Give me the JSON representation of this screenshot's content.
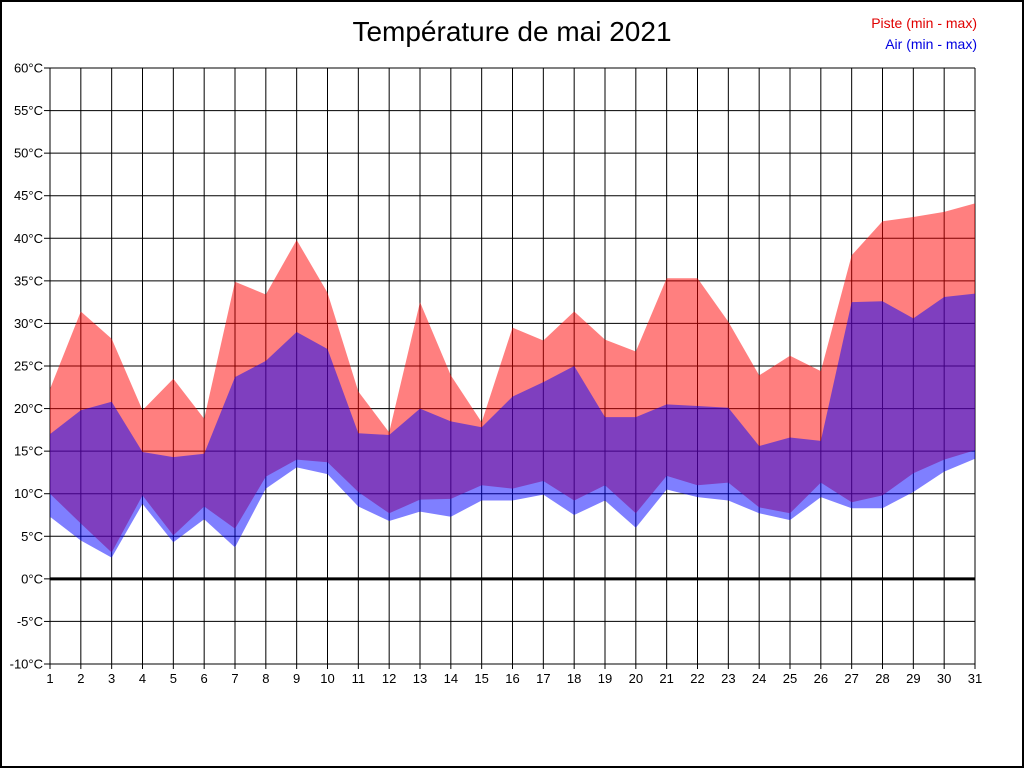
{
  "page": {
    "background_color": "#ffffff",
    "border_color": "#000000"
  },
  "chart_data": {
    "type": "area",
    "title": "Température de mai 2021",
    "x": [
      1,
      2,
      3,
      4,
      5,
      6,
      7,
      8,
      9,
      10,
      11,
      12,
      13,
      14,
      15,
      16,
      17,
      18,
      19,
      20,
      21,
      22,
      23,
      24,
      25,
      26,
      27,
      28,
      29,
      30,
      31
    ],
    "xlabel": "",
    "ylabel": "",
    "ylim": [
      -10,
      60
    ],
    "ytick_step": 5,
    "y_unit": "°C",
    "y_tick_labels": [
      "-10°C",
      "-5°C",
      "0°C",
      "5°C",
      "10°C",
      "15°C",
      "20°C",
      "25°C",
      "30°C",
      "35°C",
      "40°C",
      "45°C",
      "50°C",
      "55°C",
      "60°C"
    ],
    "grid": true,
    "zero_line_emphasized": true,
    "legend_position": "top-right",
    "overlap_appearance": "#8040bf",
    "series": [
      {
        "name": "Piste (min - max)",
        "kind": "min-max-band",
        "fill": "rgba(255,0,0,0.5)",
        "label_color": "#e00000",
        "max": [
          22.3,
          31.4,
          28.2,
          19.8,
          23.5,
          18.8,
          34.9,
          33.4,
          39.8,
          33.6,
          22.0,
          17.2,
          32.5,
          23.9,
          18.4,
          29.5,
          28.0,
          31.4,
          28.1,
          26.7,
          35.3,
          35.3,
          30.2,
          23.9,
          26.2,
          24.4,
          38.0,
          42.0,
          42.5,
          43.1,
          44.1
        ],
        "min": [
          10.0,
          6.5,
          3.1,
          9.8,
          5.1,
          8.5,
          5.9,
          12.0,
          14.0,
          13.7,
          10.2,
          7.7,
          9.3,
          9.4,
          11.0,
          10.6,
          11.5,
          9.2,
          11.0,
          7.7,
          12.1,
          11.0,
          11.3,
          8.4,
          7.7,
          11.3,
          9.0,
          9.8,
          12.4,
          14.0,
          15.1
        ]
      },
      {
        "name": "Air (min - max)",
        "kind": "min-max-band",
        "fill": "rgba(0,0,255,0.5)",
        "label_color": "#0000e0",
        "max": [
          17.0,
          19.8,
          20.8,
          14.9,
          14.3,
          14.7,
          23.7,
          25.6,
          29.0,
          27.0,
          17.1,
          16.9,
          20.0,
          18.5,
          17.8,
          21.4,
          23.1,
          25.0,
          19.0,
          19.0,
          20.5,
          20.3,
          20.1,
          15.6,
          16.6,
          16.2,
          32.5,
          32.6,
          30.6,
          33.1,
          33.5
        ],
        "min": [
          7.3,
          4.5,
          2.5,
          8.8,
          4.3,
          7.0,
          3.7,
          10.6,
          13.1,
          12.3,
          8.5,
          6.8,
          7.9,
          7.3,
          9.2,
          9.2,
          9.9,
          7.5,
          9.2,
          6.0,
          10.5,
          9.6,
          9.2,
          7.7,
          6.9,
          9.6,
          8.3,
          8.3,
          10.2,
          12.6,
          14.1
        ]
      }
    ]
  }
}
